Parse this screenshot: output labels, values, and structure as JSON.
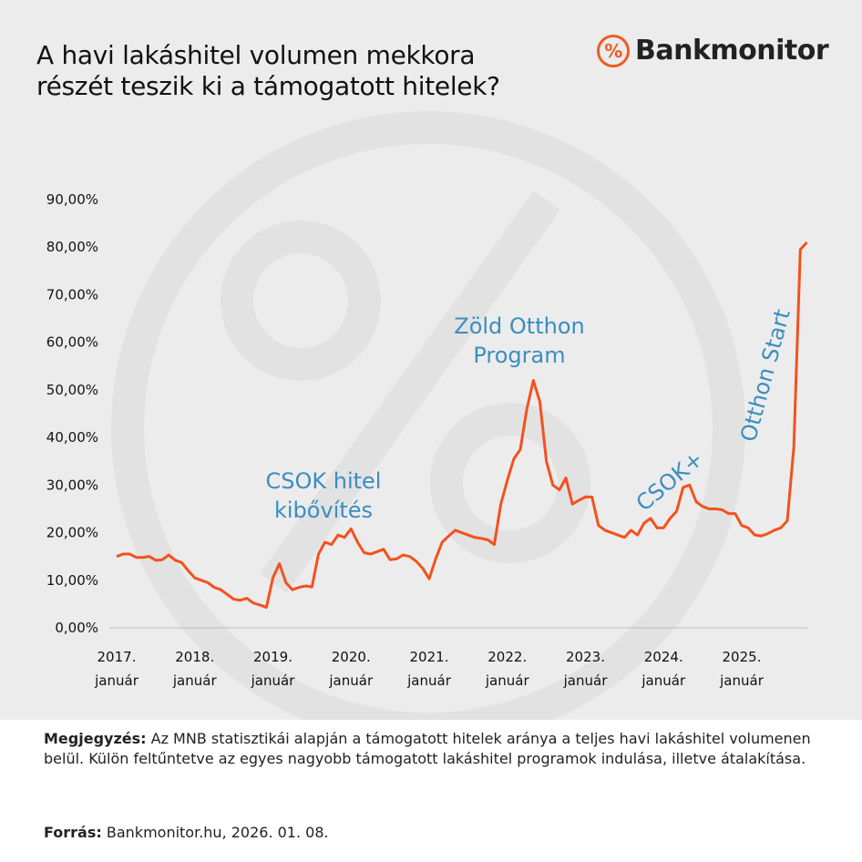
{
  "chart_data": {
    "type": "line",
    "title": "A havi lakáshitel volumen mekkora\nrészét teszik ki a támogatott hitelek?",
    "brand": "Bankmonitor",
    "categories": [
      "2017.\njanuár",
      null,
      null,
      null,
      null,
      null,
      null,
      null,
      null,
      null,
      null,
      null,
      "2018.\njanuár",
      null,
      null,
      null,
      null,
      null,
      null,
      null,
      null,
      null,
      null,
      null,
      "2019.\njanuár",
      null,
      null,
      null,
      null,
      null,
      null,
      null,
      null,
      null,
      null,
      null,
      "2020.\njanuár",
      null,
      null,
      null,
      null,
      null,
      null,
      null,
      null,
      null,
      null,
      null,
      "2021.\njanuár",
      null,
      null,
      null,
      null,
      null,
      null,
      null,
      null,
      null,
      null,
      null,
      "2022.\njanuár",
      null,
      null,
      null,
      null,
      null,
      null,
      null,
      null,
      null,
      null,
      null,
      "2023.\njanuár",
      null,
      null,
      null,
      null,
      null,
      null,
      null,
      null,
      null,
      null,
      null,
      "2024.\njanuár",
      null,
      null,
      null,
      null,
      null,
      null,
      null,
      null,
      null,
      null,
      null,
      "2025.\njanuár",
      null,
      null,
      null,
      null,
      null,
      null,
      null,
      null,
      null,
      null
    ],
    "values": [
      15,
      15.5,
      15.5,
      14.8,
      14.8,
      15,
      14.2,
      14.3,
      15.3,
      14.2,
      13.7,
      12,
      10.5,
      10,
      9.5,
      8.5,
      8,
      7,
      6,
      5.8,
      6.2,
      5.2,
      4.8,
      4.3,
      10.5,
      13.5,
      9.5,
      8,
      8.5,
      8.8,
      8.6,
      15.5,
      18,
      17.5,
      19.5,
      19,
      20.8,
      18,
      15.8,
      15.5,
      16,
      16.5,
      14.3,
      14.5,
      15.3,
      15,
      14,
      12.5,
      10.3,
      14.5,
      18,
      19.3,
      20.5,
      20,
      19.5,
      19,
      18.8,
      18.5,
      17.5,
      26,
      31,
      35.5,
      37.5,
      46,
      52,
      47.5,
      35,
      30,
      29,
      31.5,
      26,
      26.8,
      27.5,
      27.5,
      21.5,
      20.5,
      20,
      19.5,
      19,
      20.5,
      19.5,
      22,
      23,
      21,
      21,
      23,
      24.5,
      29.5,
      30,
      26.5,
      25.5,
      25,
      25,
      24.8,
      24,
      24,
      21.5,
      21,
      19.5,
      19.3,
      19.8,
      20.5,
      21,
      22.5,
      38,
      79.5,
      81
    ],
    "color": "#f4511e",
    "ylim": [
      0,
      90
    ],
    "yticks": [
      {
        "value": 0,
        "label": "0,00%"
      },
      {
        "value": 10,
        "label": "10,00%"
      },
      {
        "value": 20,
        "label": "20,00%"
      },
      {
        "value": 30,
        "label": "30,00%"
      },
      {
        "value": 40,
        "label": "40,00%"
      },
      {
        "value": 50,
        "label": "50,00%"
      },
      {
        "value": 60,
        "label": "60,00%"
      },
      {
        "value": 70,
        "label": "70,00%"
      },
      {
        "value": 80,
        "label": "80,00%"
      },
      {
        "value": 90,
        "label": "90,00%"
      }
    ],
    "grid": false,
    "annotations": [
      "CSOK hitel\nkibővítés",
      "Zöld Otthon\nProgram",
      "CSOK+",
      "Otthon Start"
    ],
    "note_label": "Megjegyzés:",
    "note": "Az MNB statisztikái alapján a támogatott hitelek aránya a teljes havi lakáshitel volumenen belül. Külön feltűntetve az egyes nagyobb támogatott lakáshitel programok indulása, illetve átalakítása.",
    "source_label": "Forrás:",
    "source": "Bankmonitor.hu, 2026. 01. 08."
  }
}
